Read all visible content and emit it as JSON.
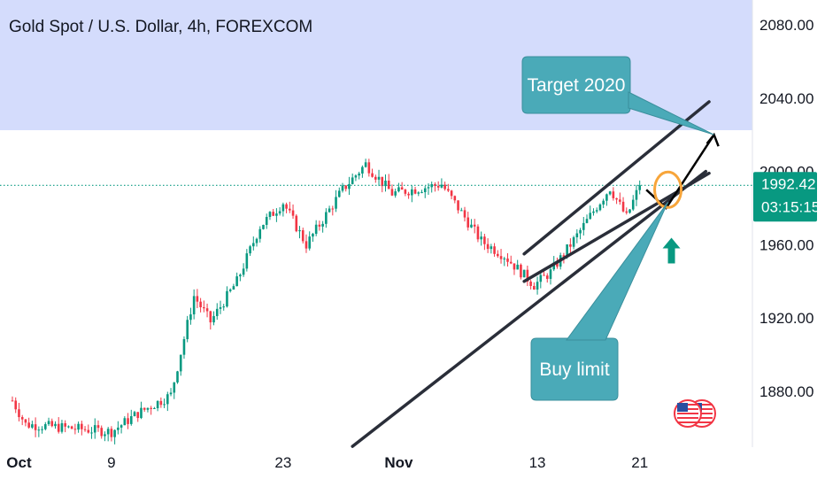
{
  "chart_data": {
    "type": "candlestick",
    "title": "Gold Spot / U.S. Dollar, 4h, FOREXCOM",
    "ylim": [
      1855,
      2085
    ],
    "y_ticks": [
      "2080.00",
      "2040.00",
      "2000.00",
      "1960.00",
      "1920.00",
      "1880.00"
    ],
    "y_tick_values": [
      2080,
      2040,
      2000,
      1960,
      1920,
      1880
    ],
    "x_ticks": [
      {
        "label": "Oct",
        "bar": 2
      },
      {
        "label": "9",
        "bar": 30
      },
      {
        "label": "23",
        "bar": 82
      },
      {
        "label": "Nov",
        "bar": 117
      },
      {
        "label": "13",
        "bar": 159
      },
      {
        "label": "21",
        "bar": 190
      }
    ],
    "bar_count": 210,
    "last_price": "1992.42",
    "countdown": "03:15:15",
    "colors": {
      "up": "#089981",
      "down": "#f23645",
      "zone": "#d4dcfc",
      "callout": "#4aaab8",
      "arrow_up": "#089981",
      "circle": "#f7a53a",
      "price_line": "#089981"
    },
    "key_points": [
      {
        "bar": 0,
        "close": 1875
      },
      {
        "bar": 4,
        "close": 1862
      },
      {
        "bar": 30,
        "close": 1858
      },
      {
        "bar": 38,
        "close": 1868
      },
      {
        "bar": 48,
        "close": 1878
      },
      {
        "bar": 55,
        "close": 1932
      },
      {
        "bar": 60,
        "close": 1918
      },
      {
        "bar": 68,
        "close": 1940
      },
      {
        "bar": 75,
        "close": 1970
      },
      {
        "bar": 82,
        "close": 1983
      },
      {
        "bar": 89,
        "close": 1960
      },
      {
        "bar": 100,
        "close": 1990
      },
      {
        "bar": 107,
        "close": 2004
      },
      {
        "bar": 115,
        "close": 1988
      },
      {
        "bar": 130,
        "close": 1993
      },
      {
        "bar": 142,
        "close": 1962
      },
      {
        "bar": 149,
        "close": 1954
      },
      {
        "bar": 158,
        "close": 1938
      },
      {
        "bar": 163,
        "close": 1945
      },
      {
        "bar": 171,
        "close": 1965
      },
      {
        "bar": 177,
        "close": 1981
      },
      {
        "bar": 181,
        "close": 1991
      },
      {
        "bar": 186,
        "close": 1975
      },
      {
        "bar": 190,
        "close": 1992.42
      }
    ],
    "annotations": [
      {
        "text": "Target 2020",
        "price": 2020
      },
      {
        "text": "Buy limit"
      }
    ],
    "trendlines": [
      {
        "from": {
          "bar": 103,
          "price": 1850
        },
        "to": {
          "bar": 210,
          "price": 2000
        }
      },
      {
        "from": {
          "bar": 155,
          "price": 1955
        },
        "to": {
          "bar": 211,
          "price": 2038
        }
      },
      {
        "from": {
          "bar": 155,
          "price": 1940
        },
        "to": {
          "bar": 211,
          "price": 1999
        }
      }
    ]
  },
  "labels": {
    "title": "Gold Spot / U.S. Dollar, 4h, FOREXCOM",
    "target": "Target 2020",
    "buy": "Buy limit"
  }
}
